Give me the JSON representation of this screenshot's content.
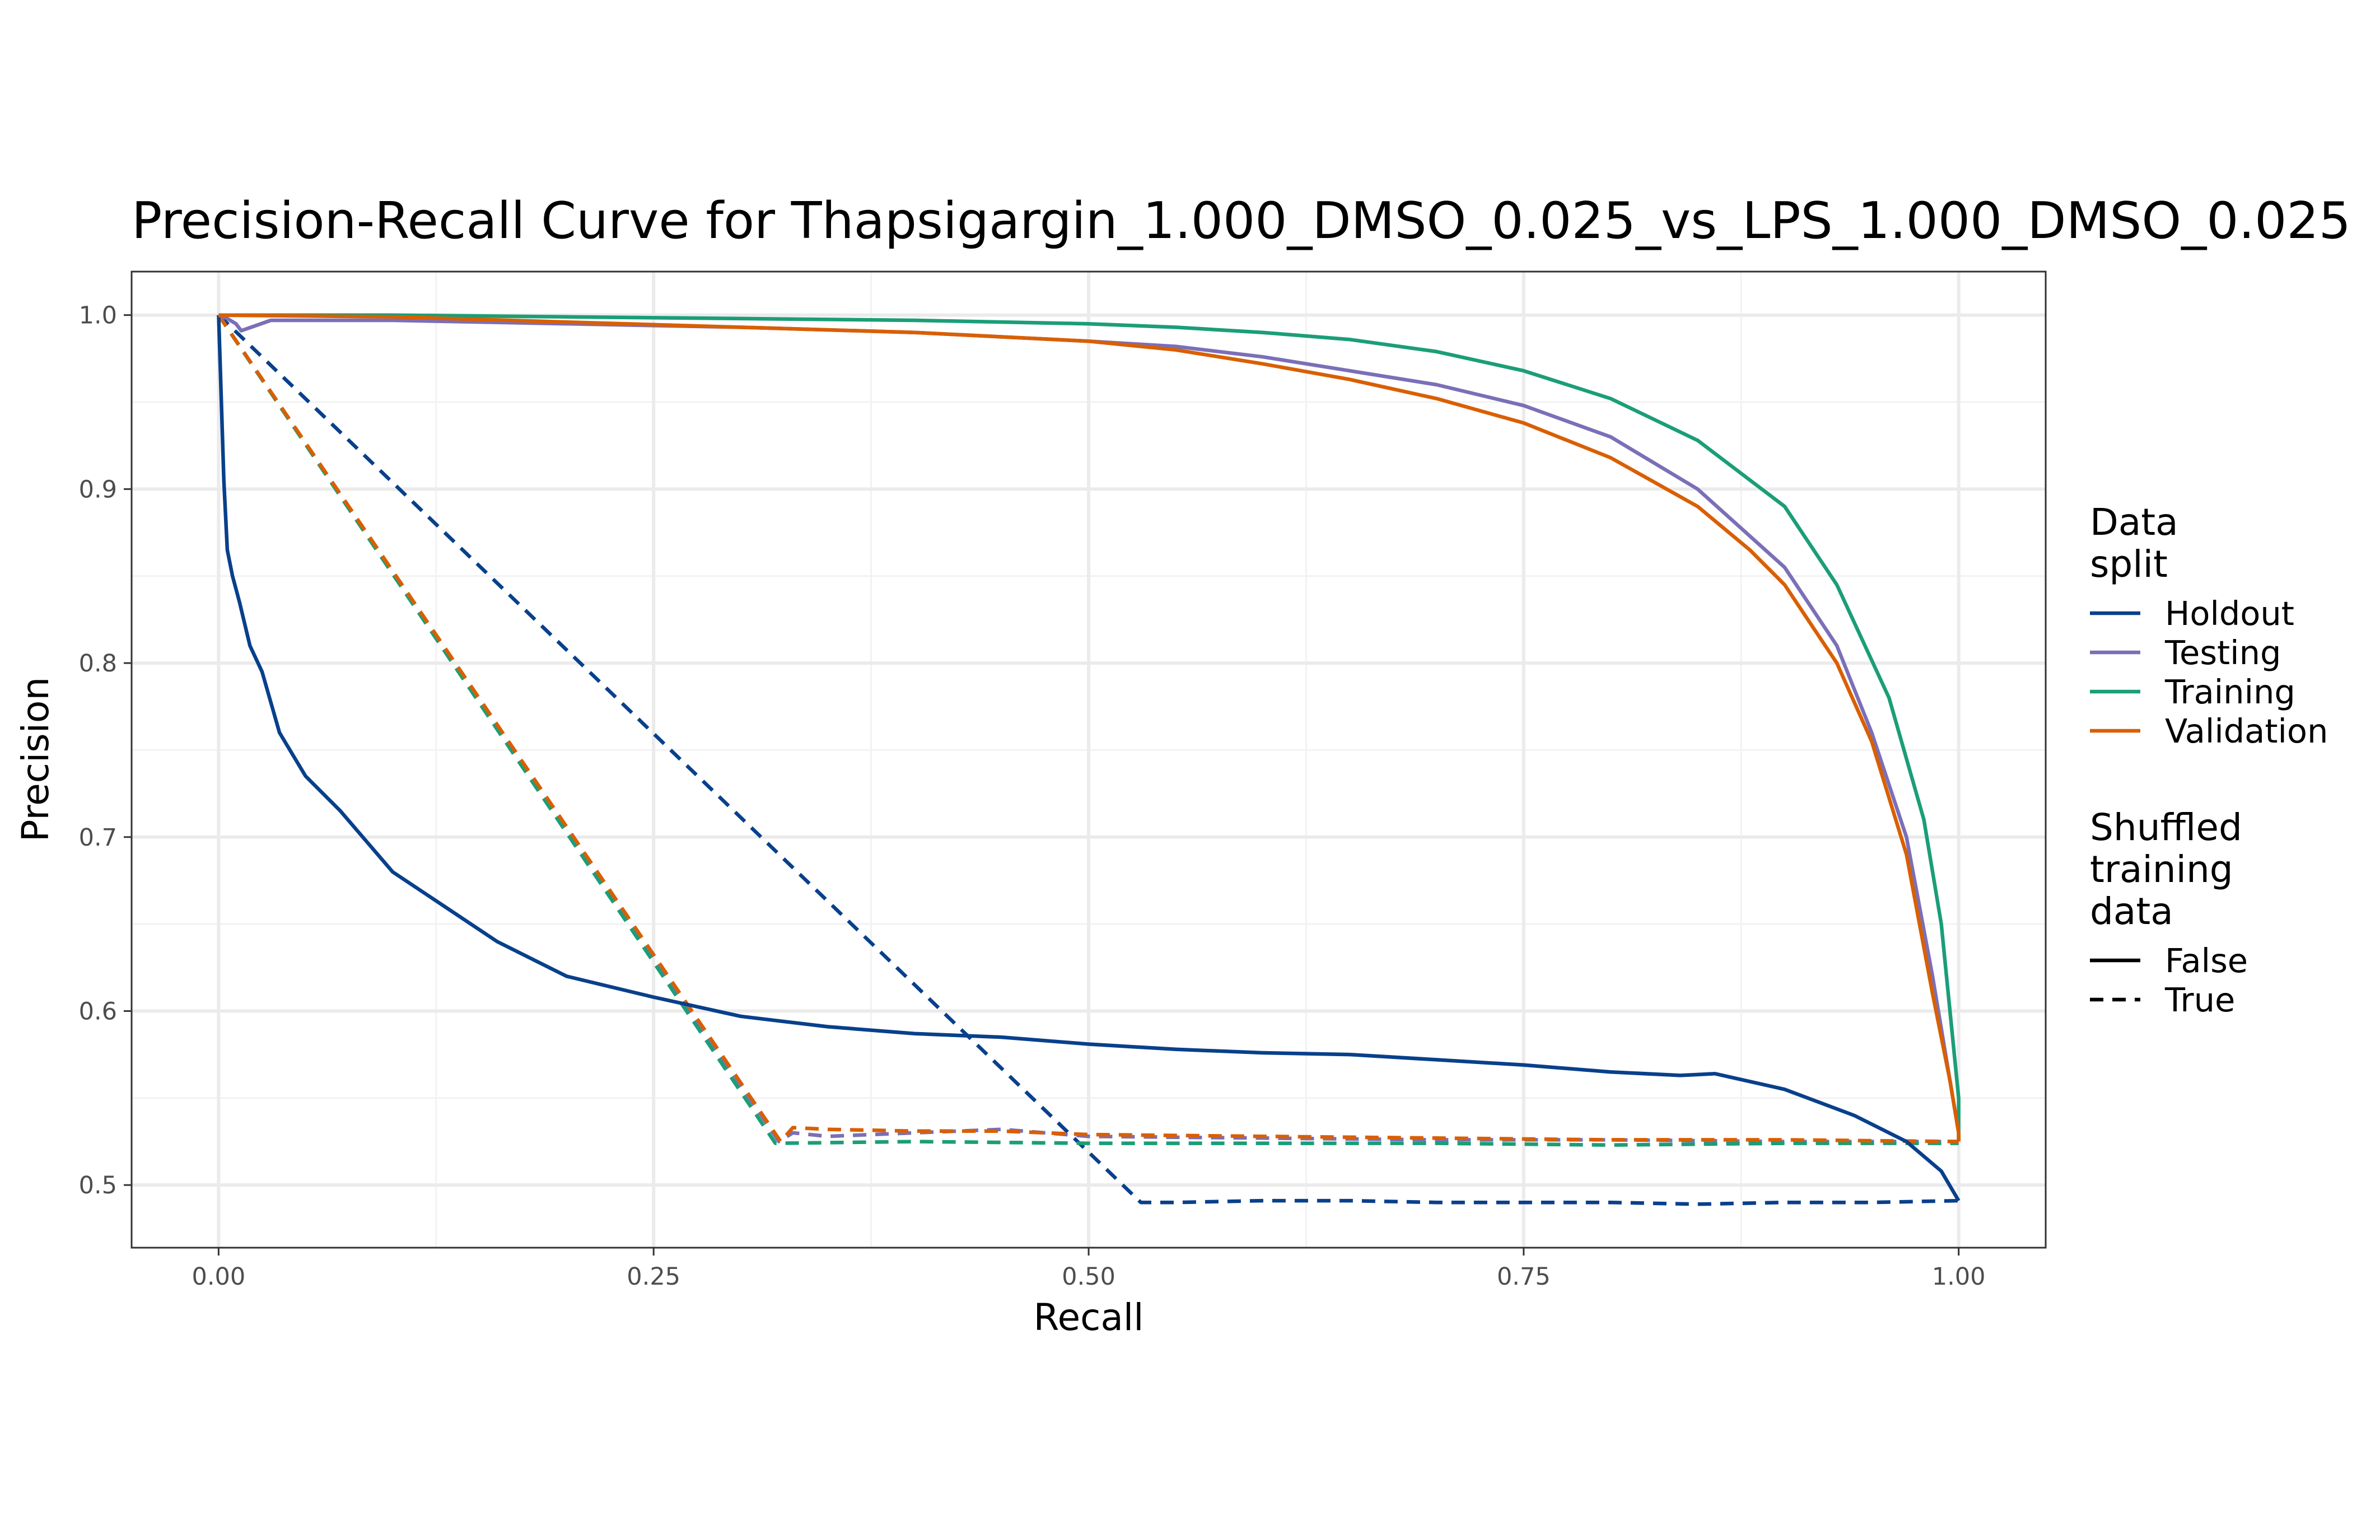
{
  "chart_data": {
    "type": "line",
    "title": "Precision-Recall Curve for Thapsigargin_1.000_DMSO_0.025_vs_LPS_1.000_DMSO_0.025",
    "xlabel": "Recall",
    "ylabel": "Precision",
    "xlim": [
      -0.05,
      1.05
    ],
    "ylim": [
      0.464,
      1.025
    ],
    "x_ticks": [
      0.0,
      0.25,
      0.5,
      0.75,
      1.0
    ],
    "x_tick_labels": [
      "0.00",
      "0.25",
      "0.50",
      "0.75",
      "1.00"
    ],
    "y_ticks": [
      0.5,
      0.6,
      0.7,
      0.8,
      0.9,
      1.0
    ],
    "y_tick_labels": [
      "0.5",
      "0.6",
      "0.7",
      "0.8",
      "0.9",
      "1.0"
    ],
    "grid": true,
    "legend_placement": "right",
    "legends": [
      {
        "title": [
          "Data",
          "split"
        ],
        "entries": [
          {
            "label": "Holdout",
            "color": "#08408B"
          },
          {
            "label": "Testing",
            "color": "#7B6FB8"
          },
          {
            "label": "Training",
            "color": "#1B9E77"
          },
          {
            "label": "Validation",
            "color": "#D95F02"
          }
        ]
      },
      {
        "title": [
          "Shuffled",
          "training",
          "data"
        ],
        "entries": [
          {
            "label": "False",
            "linetype": "solid"
          },
          {
            "label": "True",
            "linetype": "dashed"
          }
        ]
      }
    ],
    "series": [
      {
        "split": "Holdout",
        "shuffled": "False",
        "color": "#08408B",
        "x": [
          0.0,
          0.003,
          0.005,
          0.008,
          0.012,
          0.018,
          0.025,
          0.035,
          0.05,
          0.07,
          0.1,
          0.13,
          0.16,
          0.2,
          0.25,
          0.3,
          0.35,
          0.4,
          0.45,
          0.5,
          0.55,
          0.6,
          0.65,
          0.7,
          0.75,
          0.8,
          0.84,
          0.86,
          0.9,
          0.94,
          0.97,
          0.99,
          1.0
        ],
        "y": [
          1.0,
          0.905,
          0.865,
          0.85,
          0.835,
          0.81,
          0.795,
          0.76,
          0.735,
          0.715,
          0.68,
          0.66,
          0.64,
          0.62,
          0.608,
          0.597,
          0.591,
          0.587,
          0.585,
          0.581,
          0.578,
          0.576,
          0.575,
          0.572,
          0.569,
          0.565,
          0.563,
          0.564,
          0.555,
          0.54,
          0.525,
          0.508,
          0.491
        ]
      },
      {
        "split": "Testing",
        "shuffled": "False",
        "color": "#7B6FB8",
        "x": [
          0.0,
          0.005,
          0.01,
          0.013,
          0.03,
          0.1,
          0.2,
          0.3,
          0.4,
          0.5,
          0.55,
          0.6,
          0.65,
          0.7,
          0.75,
          0.8,
          0.85,
          0.9,
          0.93,
          0.95,
          0.97,
          0.985,
          0.995,
          1.0,
          1.0
        ],
        "y": [
          1.0,
          0.998,
          0.995,
          0.991,
          0.997,
          0.997,
          0.995,
          0.993,
          0.99,
          0.985,
          0.982,
          0.976,
          0.968,
          0.96,
          0.948,
          0.93,
          0.9,
          0.855,
          0.81,
          0.76,
          0.7,
          0.62,
          0.56,
          0.53,
          0.525
        ]
      },
      {
        "split": "Training",
        "shuffled": "False",
        "color": "#1B9E77",
        "x": [
          0.0,
          0.1,
          0.2,
          0.3,
          0.4,
          0.5,
          0.55,
          0.6,
          0.65,
          0.7,
          0.75,
          0.8,
          0.85,
          0.9,
          0.93,
          0.96,
          0.98,
          0.99,
          0.995,
          1.0,
          1.0
        ],
        "y": [
          1.0,
          1.0,
          0.999,
          0.998,
          0.997,
          0.995,
          0.993,
          0.99,
          0.986,
          0.979,
          0.968,
          0.952,
          0.928,
          0.89,
          0.845,
          0.78,
          0.71,
          0.65,
          0.6,
          0.55,
          0.525
        ]
      },
      {
        "split": "Validation",
        "shuffled": "False",
        "color": "#D95F02",
        "x": [
          0.0,
          0.1,
          0.2,
          0.3,
          0.4,
          0.5,
          0.55,
          0.6,
          0.65,
          0.7,
          0.75,
          0.8,
          0.85,
          0.88,
          0.9,
          0.93,
          0.95,
          0.97,
          0.985,
          0.995,
          1.0,
          1.0
        ],
        "y": [
          1.0,
          0.999,
          0.996,
          0.993,
          0.99,
          0.985,
          0.98,
          0.972,
          0.963,
          0.952,
          0.938,
          0.918,
          0.89,
          0.865,
          0.845,
          0.8,
          0.755,
          0.69,
          0.61,
          0.56,
          0.53,
          0.525
        ]
      },
      {
        "split": "Holdout",
        "shuffled": "True",
        "color": "#08408B",
        "x": [
          0.0,
          0.53,
          0.55,
          0.6,
          0.65,
          0.7,
          0.75,
          0.8,
          0.85,
          0.9,
          0.95,
          1.0
        ],
        "y": [
          1.0,
          0.49,
          0.49,
          0.491,
          0.491,
          0.49,
          0.49,
          0.49,
          0.489,
          0.49,
          0.49,
          0.491
        ]
      },
      {
        "split": "Testing",
        "shuffled": "True",
        "color": "#7B6FB8",
        "x": [
          0.0,
          0.322,
          0.33,
          0.35,
          0.4,
          0.45,
          0.5,
          0.6,
          0.7,
          0.8,
          0.9,
          1.0
        ],
        "y": [
          1.0,
          0.525,
          0.53,
          0.528,
          0.53,
          0.532,
          0.528,
          0.527,
          0.526,
          0.526,
          0.525,
          0.525
        ]
      },
      {
        "split": "Training",
        "shuffled": "True",
        "color": "#1B9E77",
        "x": [
          0.0,
          0.32,
          0.4,
          0.5,
          0.6,
          0.7,
          0.8,
          0.9,
          1.0
        ],
        "y": [
          1.0,
          0.524,
          0.525,
          0.524,
          0.524,
          0.524,
          0.523,
          0.524,
          0.524
        ]
      },
      {
        "split": "Validation",
        "shuffled": "True",
        "color": "#D95F02",
        "x": [
          0.0,
          0.323,
          0.33,
          0.35,
          0.4,
          0.45,
          0.5,
          0.6,
          0.7,
          0.8,
          0.9,
          1.0
        ],
        "y": [
          1.0,
          0.525,
          0.533,
          0.532,
          0.531,
          0.531,
          0.529,
          0.528,
          0.527,
          0.526,
          0.526,
          0.525
        ]
      }
    ]
  }
}
